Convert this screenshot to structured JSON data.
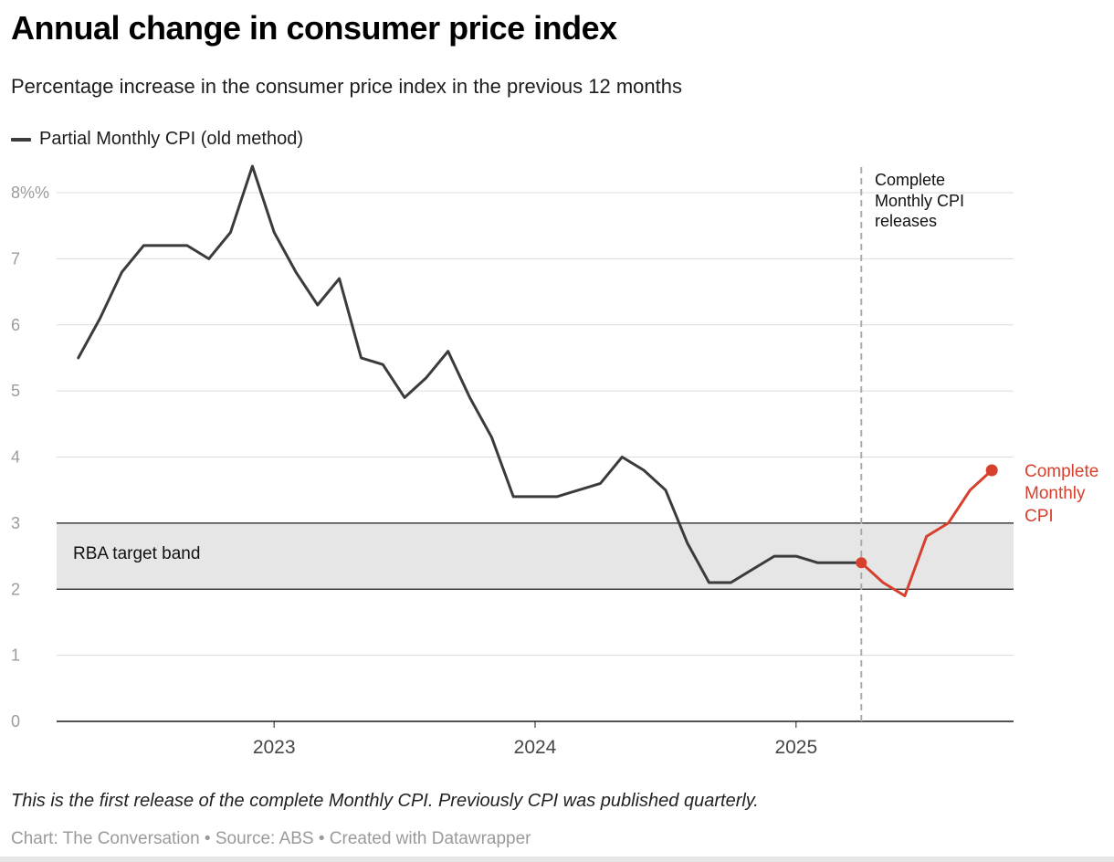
{
  "header": {
    "title": "Annual change in consumer price index",
    "subtitle": "Percentage increase in the consumer price index in the previous 12 months"
  },
  "legend": {
    "items": [
      {
        "label": "Partial Monthly CPI (old method)",
        "color": "#3b3b3b"
      }
    ]
  },
  "chart_data": {
    "type": "line",
    "title": "Annual change in consumer price index",
    "subtitle": "Percentage increase in the consumer price index in the previous 12 months",
    "unit": "%",
    "ylim": [
      0,
      8.4
    ],
    "grid": "horizontal",
    "y_ticks": [
      0,
      1,
      2,
      3,
      4,
      5,
      6,
      7,
      8
    ],
    "y_tick_labels": [
      "0",
      "1",
      "2",
      "3",
      "4",
      "5",
      "6",
      "7",
      "8%%"
    ],
    "x_tick_labels": [
      "2023",
      "2024",
      "2025"
    ],
    "x_tick_months": [
      "2023-01",
      "2024-01",
      "2025-01"
    ],
    "x_domain_months": [
      "2022-03",
      "2025-11"
    ],
    "band": {
      "from": 2,
      "to": 3,
      "label": "RBA target band",
      "fill": "#e6e6e6",
      "border_color": "#1a1a1a"
    },
    "colors": {
      "grid": "#dcdcdc",
      "axis": "#1a1a1a",
      "y_tick_text": "#9b9b9b",
      "x_tick_text": "#464646"
    },
    "series": [
      {
        "name": "Partial Monthly CPI (old method)",
        "color": "#3b3b3b",
        "dot_start": false,
        "dot_end": false,
        "points": [
          [
            "2022-04",
            5.5
          ],
          [
            "2022-05",
            6.1
          ],
          [
            "2022-06",
            6.8
          ],
          [
            "2022-07",
            7.2
          ],
          [
            "2022-08",
            7.2
          ],
          [
            "2022-09",
            7.2
          ],
          [
            "2022-10",
            7.0
          ],
          [
            "2022-11",
            7.4
          ],
          [
            "2022-12",
            8.4
          ],
          [
            "2023-01",
            7.4
          ],
          [
            "2023-02",
            6.8
          ],
          [
            "2023-03",
            6.3
          ],
          [
            "2023-04",
            6.7
          ],
          [
            "2023-05",
            5.5
          ],
          [
            "2023-06",
            5.4
          ],
          [
            "2023-07",
            4.9
          ],
          [
            "2023-08",
            5.2
          ],
          [
            "2023-09",
            5.6
          ],
          [
            "2023-10",
            4.9
          ],
          [
            "2023-11",
            4.3
          ],
          [
            "2023-12",
            3.4
          ],
          [
            "2024-01",
            3.4
          ],
          [
            "2024-02",
            3.4
          ],
          [
            "2024-03",
            3.5
          ],
          [
            "2024-04",
            3.6
          ],
          [
            "2024-05",
            4.0
          ],
          [
            "2024-06",
            3.8
          ],
          [
            "2024-07",
            3.5
          ],
          [
            "2024-08",
            2.7
          ],
          [
            "2024-09",
            2.1
          ],
          [
            "2024-10",
            2.1
          ],
          [
            "2024-11",
            2.3
          ],
          [
            "2024-12",
            2.5
          ],
          [
            "2025-01",
            2.5
          ],
          [
            "2025-02",
            2.4
          ],
          [
            "2025-03",
            2.4
          ],
          [
            "2025-04",
            2.4
          ]
        ]
      },
      {
        "name": "Complete Monthly CPI",
        "color": "#d6402c",
        "dot_start": true,
        "dot_end": true,
        "points": [
          [
            "2025-04",
            2.4
          ],
          [
            "2025-05",
            2.1
          ],
          [
            "2025-06",
            1.9
          ],
          [
            "2025-07",
            2.8
          ],
          [
            "2025-08",
            3.0
          ],
          [
            "2025-09",
            3.5
          ],
          [
            "2025-10",
            3.8
          ]
        ]
      }
    ],
    "annotations": {
      "vline": {
        "month": "2025-04",
        "label": "Complete Monthly CPI releases",
        "color": "#ababab"
      },
      "series_end_label": {
        "text": "Complete Monthly CPI",
        "color": "#d6402c"
      }
    }
  },
  "footer": {
    "note": "This is the first release of the complete Monthly CPI. Previously CPI was published quarterly.",
    "byline": "Chart: The Conversation • Source: ABS • Created with Datawrapper"
  }
}
